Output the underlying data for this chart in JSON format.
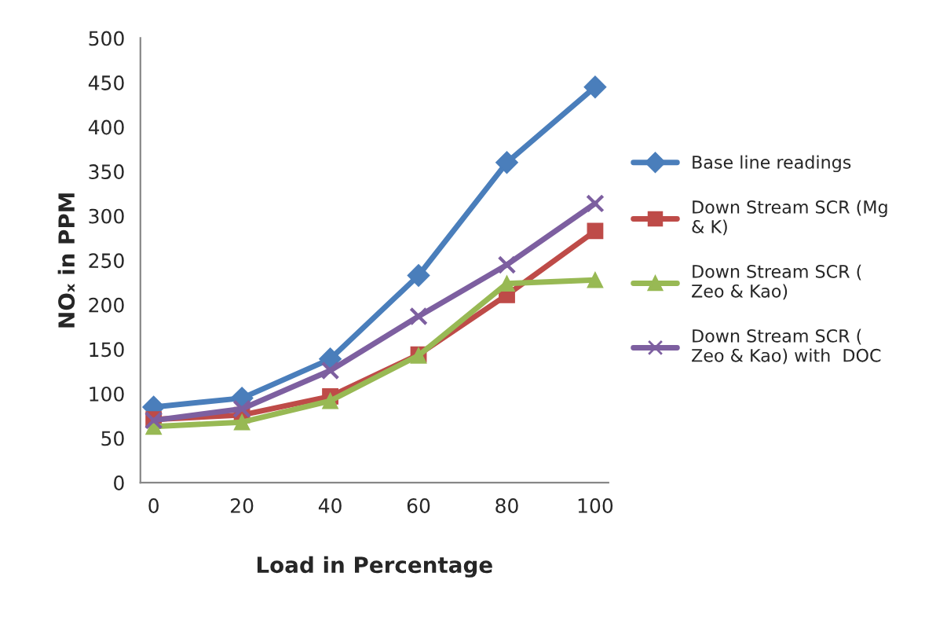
{
  "chart_data": {
    "type": "line",
    "xlabel": "Load in Percentage",
    "ylabel": "NOₓ in PPM",
    "categories": [
      "0",
      "20",
      "40",
      "60",
      "80",
      "100"
    ],
    "series": [
      {
        "name": "Base line readings",
        "color": "#4a7ebb",
        "marker": "diamond",
        "values": [
          85,
          95,
          139,
          233,
          360,
          445
        ]
      },
      {
        "name": "Down Stream SCR (Mg & K)",
        "color": "#be4b48",
        "marker": "square",
        "values": [
          71,
          76,
          97,
          144,
          211,
          283
        ]
      },
      {
        "name": "Down Stream SCR ( Zeo & Kao)",
        "color": "#98b954",
        "marker": "triangle",
        "values": [
          63,
          68,
          92,
          143,
          224,
          228
        ]
      },
      {
        "name": "Down Stream SCR ( Zeo & Kao) with  DOC",
        "color": "#7d5fa0",
        "marker": "cross",
        "values": [
          70,
          83,
          126,
          187,
          245,
          314
        ]
      }
    ],
    "ylim": [
      0,
      500
    ],
    "yticks": [
      0,
      50,
      100,
      150,
      200,
      250,
      300,
      350,
      400,
      450,
      500
    ],
    "grid": false,
    "legend": "right"
  }
}
